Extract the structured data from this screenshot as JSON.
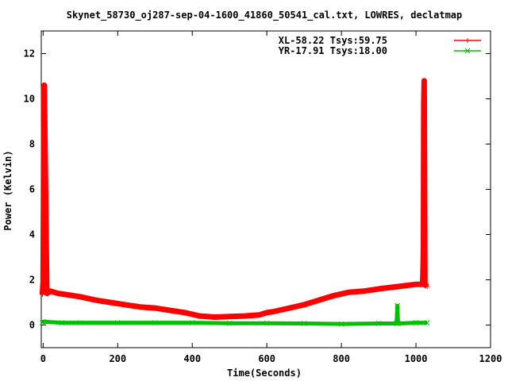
{
  "chart_data": {
    "type": "line",
    "title": "Skynet_58730_oj287-sep-04-1600_41860_50541_cal.txt, LOWRES, declatmap",
    "xlabel": "Time(Seconds)",
    "ylabel": "Power (Kelvin)",
    "xlim": [
      -5,
      1200
    ],
    "ylim": [
      -1,
      13
    ],
    "xticks": [
      0,
      200,
      400,
      600,
      800,
      1000,
      1200
    ],
    "xtick_labels": [
      "0",
      "200",
      "400",
      "600",
      "800",
      "1000",
      "1200"
    ],
    "yticks": [
      0,
      2,
      4,
      6,
      8,
      10,
      12
    ],
    "ytick_labels": [
      "0",
      "2",
      "4",
      "6",
      "8",
      "10",
      "12"
    ],
    "grid": false,
    "legend_position": "top-right",
    "series": [
      {
        "name": "XL-58.22 Tsys:59.75",
        "color": "#ff0000",
        "marker": "+",
        "x": [
          -2,
          0,
          1,
          1.5,
          2,
          3,
          10,
          20,
          40,
          60,
          80,
          100,
          140,
          180,
          220,
          260,
          300,
          340,
          380,
          420,
          460,
          500,
          540,
          580,
          600,
          620,
          660,
          700,
          740,
          780,
          820,
          860,
          900,
          950,
          1000,
          1018,
          1019,
          1020,
          1021,
          1022,
          1024,
          1030
        ],
        "y": [
          1.35,
          1.9,
          5.6,
          9.4,
          10.5,
          10.6,
          1.4,
          1.5,
          1.4,
          1.35,
          1.3,
          1.25,
          1.1,
          1.0,
          0.9,
          0.8,
          0.75,
          0.65,
          0.55,
          0.4,
          0.35,
          0.38,
          0.4,
          0.45,
          0.55,
          0.6,
          0.75,
          0.9,
          1.1,
          1.3,
          1.45,
          1.5,
          1.6,
          1.7,
          1.8,
          1.8,
          2.5,
          3.5,
          9.7,
          10.8,
          1.8,
          1.7
        ]
      },
      {
        "name": "YR-17.91 Tsys:18.00",
        "color": "#00c000",
        "marker": "x",
        "x": [
          -2,
          0,
          50,
          100,
          200,
          300,
          400,
          500,
          600,
          700,
          800,
          900,
          948,
          950,
          952,
          1000,
          1030
        ],
        "y": [
          0.1,
          0.15,
          0.1,
          0.1,
          0.1,
          0.1,
          0.1,
          0.08,
          0.08,
          0.07,
          0.05,
          0.07,
          0.07,
          0.85,
          0.07,
          0.1,
          0.1
        ]
      }
    ]
  }
}
